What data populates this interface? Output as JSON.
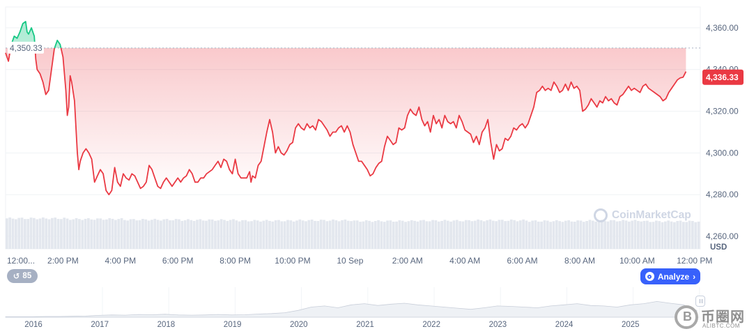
{
  "chart_data": {
    "type": "area",
    "currency_label": "USD",
    "reference_price": 4350.33,
    "reference_label": "4,350.33",
    "current_price": 4336.33,
    "current_label": "4,336.33",
    "ylim": [
      4254,
      4370
    ],
    "y_ticks": [
      4260,
      4280,
      4300,
      4320,
      4340,
      4360
    ],
    "y_tick_labels": [
      "4,260.00",
      "4,280.00",
      "4,300.00",
      "4,320.00",
      "4,340.00",
      "4,360.00"
    ],
    "x_tick_labels": [
      "12:00...",
      "2:00 PM",
      "4:00 PM",
      "6:00 PM",
      "8:00 PM",
      "10:00 PM",
      "10 Sep",
      "2:00 AM",
      "4:00 AM",
      "6:00 AM",
      "8:00 AM",
      "10:00 AM",
      "12:00 PM"
    ],
    "x_tick_hours": [
      0,
      2,
      4,
      6,
      8,
      10,
      12,
      14,
      16,
      18,
      20,
      22,
      24
    ],
    "x_range_hours": [
      0,
      24.2
    ],
    "series": [
      {
        "color_above": "#16c784",
        "color_below": "#ea3943",
        "points": [
          [
            0.0,
            4348
          ],
          [
            0.1,
            4344
          ],
          [
            0.2,
            4352
          ],
          [
            0.3,
            4356
          ],
          [
            0.4,
            4355
          ],
          [
            0.5,
            4358
          ],
          [
            0.6,
            4362
          ],
          [
            0.7,
            4363
          ],
          [
            0.75,
            4358
          ],
          [
            0.8,
            4357
          ],
          [
            0.9,
            4360
          ],
          [
            1.0,
            4356
          ],
          [
            1.05,
            4345
          ],
          [
            1.1,
            4340
          ],
          [
            1.2,
            4338
          ],
          [
            1.3,
            4334
          ],
          [
            1.4,
            4328
          ],
          [
            1.5,
            4330
          ],
          [
            1.6,
            4340
          ],
          [
            1.7,
            4350
          ],
          [
            1.8,
            4354
          ],
          [
            1.9,
            4352
          ],
          [
            2.0,
            4346
          ],
          [
            2.1,
            4330
          ],
          [
            2.15,
            4318
          ],
          [
            2.2,
            4322
          ],
          [
            2.25,
            4337
          ],
          [
            2.3,
            4334
          ],
          [
            2.4,
            4325
          ],
          [
            2.5,
            4300
          ],
          [
            2.55,
            4292
          ],
          [
            2.6,
            4296
          ],
          [
            2.7,
            4300
          ],
          [
            2.8,
            4302
          ],
          [
            2.9,
            4300
          ],
          [
            3.0,
            4297
          ],
          [
            3.1,
            4286
          ],
          [
            3.2,
            4289
          ],
          [
            3.3,
            4292
          ],
          [
            3.4,
            4290
          ],
          [
            3.5,
            4282
          ],
          [
            3.6,
            4280
          ],
          [
            3.7,
            4282
          ],
          [
            3.8,
            4293
          ],
          [
            3.9,
            4286
          ],
          [
            4.0,
            4284
          ],
          [
            4.1,
            4290
          ],
          [
            4.2,
            4288
          ],
          [
            4.3,
            4287
          ],
          [
            4.4,
            4290
          ],
          [
            4.5,
            4289
          ],
          [
            4.6,
            4286
          ],
          [
            4.7,
            4283
          ],
          [
            4.8,
            4284
          ],
          [
            4.9,
            4286
          ],
          [
            5.0,
            4294
          ],
          [
            5.1,
            4292
          ],
          [
            5.2,
            4288
          ],
          [
            5.3,
            4284
          ],
          [
            5.4,
            4283
          ],
          [
            5.5,
            4286
          ],
          [
            5.6,
            4288
          ],
          [
            5.7,
            4286
          ],
          [
            5.8,
            4284
          ],
          [
            5.9,
            4286
          ],
          [
            6.0,
            4288
          ],
          [
            6.1,
            4286
          ],
          [
            6.2,
            4288
          ],
          [
            6.3,
            4289
          ],
          [
            6.4,
            4292
          ],
          [
            6.5,
            4290
          ],
          [
            6.6,
            4286
          ],
          [
            6.7,
            4286
          ],
          [
            6.8,
            4288
          ],
          [
            6.9,
            4288
          ],
          [
            7.0,
            4290
          ],
          [
            7.1,
            4291
          ],
          [
            7.2,
            4292
          ],
          [
            7.3,
            4294
          ],
          [
            7.4,
            4296
          ],
          [
            7.5,
            4293
          ],
          [
            7.6,
            4297
          ],
          [
            7.7,
            4296
          ],
          [
            7.8,
            4292
          ],
          [
            7.9,
            4290
          ],
          [
            8.0,
            4297
          ],
          [
            8.1,
            4290
          ],
          [
            8.2,
            4288
          ],
          [
            8.3,
            4288
          ],
          [
            8.4,
            4288
          ],
          [
            8.5,
            4291
          ],
          [
            8.55,
            4286
          ],
          [
            8.6,
            4289
          ],
          [
            8.7,
            4288
          ],
          [
            8.8,
            4294
          ],
          [
            8.9,
            4296
          ],
          [
            9.0,
            4303
          ],
          [
            9.1,
            4310
          ],
          [
            9.2,
            4316
          ],
          [
            9.3,
            4310
          ],
          [
            9.4,
            4300
          ],
          [
            9.5,
            4303
          ],
          [
            9.6,
            4300
          ],
          [
            9.7,
            4299
          ],
          [
            9.8,
            4301
          ],
          [
            9.9,
            4304
          ],
          [
            10.0,
            4305
          ],
          [
            10.1,
            4312
          ],
          [
            10.2,
            4314
          ],
          [
            10.3,
            4312
          ],
          [
            10.4,
            4311
          ],
          [
            10.5,
            4314
          ],
          [
            10.6,
            4312
          ],
          [
            10.7,
            4313
          ],
          [
            10.8,
            4311
          ],
          [
            10.9,
            4316
          ],
          [
            11.0,
            4315
          ],
          [
            11.1,
            4313
          ],
          [
            11.2,
            4311
          ],
          [
            11.3,
            4308
          ],
          [
            11.4,
            4310
          ],
          [
            11.5,
            4310
          ],
          [
            11.6,
            4312
          ],
          [
            11.7,
            4313
          ],
          [
            11.8,
            4310
          ],
          [
            11.9,
            4313
          ],
          [
            12.0,
            4310
          ],
          [
            12.1,
            4304
          ],
          [
            12.2,
            4300
          ],
          [
            12.3,
            4296
          ],
          [
            12.4,
            4296
          ],
          [
            12.5,
            4294
          ],
          [
            12.6,
            4292
          ],
          [
            12.7,
            4289
          ],
          [
            12.8,
            4290
          ],
          [
            12.9,
            4293
          ],
          [
            13.0,
            4295
          ],
          [
            13.1,
            4296
          ],
          [
            13.2,
            4303
          ],
          [
            13.3,
            4308
          ],
          [
            13.4,
            4306
          ],
          [
            13.5,
            4304
          ],
          [
            13.6,
            4305
          ],
          [
            13.7,
            4312
          ],
          [
            13.8,
            4311
          ],
          [
            13.9,
            4312
          ],
          [
            14.0,
            4318
          ],
          [
            14.1,
            4321
          ],
          [
            14.2,
            4319
          ],
          [
            14.3,
            4318
          ],
          [
            14.4,
            4322
          ],
          [
            14.5,
            4316
          ],
          [
            14.6,
            4313
          ],
          [
            14.7,
            4315
          ],
          [
            14.8,
            4310
          ],
          [
            14.9,
            4318
          ],
          [
            15.0,
            4314
          ],
          [
            15.1,
            4316
          ],
          [
            15.2,
            4312
          ],
          [
            15.3,
            4318
          ],
          [
            15.4,
            4315
          ],
          [
            15.5,
            4314
          ],
          [
            15.6,
            4315
          ],
          [
            15.7,
            4312
          ],
          [
            15.8,
            4318
          ],
          [
            15.9,
            4315
          ],
          [
            16.0,
            4311
          ],
          [
            16.1,
            4310
          ],
          [
            16.2,
            4309
          ],
          [
            16.3,
            4305
          ],
          [
            16.4,
            4308
          ],
          [
            16.5,
            4304
          ],
          [
            16.6,
            4310
          ],
          [
            16.7,
            4312
          ],
          [
            16.8,
            4316
          ],
          [
            16.9,
            4305
          ],
          [
            17.0,
            4297
          ],
          [
            17.1,
            4304
          ],
          [
            17.2,
            4301
          ],
          [
            17.3,
            4302
          ],
          [
            17.4,
            4307
          ],
          [
            17.5,
            4306
          ],
          [
            17.6,
            4308
          ],
          [
            17.7,
            4312
          ],
          [
            17.8,
            4311
          ],
          [
            17.9,
            4313
          ],
          [
            18.0,
            4314
          ],
          [
            18.1,
            4312
          ],
          [
            18.2,
            4314
          ],
          [
            18.3,
            4318
          ],
          [
            18.4,
            4322
          ],
          [
            18.5,
            4329
          ],
          [
            18.6,
            4330
          ],
          [
            18.7,
            4332
          ],
          [
            18.8,
            4330
          ],
          [
            18.9,
            4331
          ],
          [
            19.0,
            4330
          ],
          [
            19.1,
            4334
          ],
          [
            19.2,
            4332
          ],
          [
            19.3,
            4329
          ],
          [
            19.4,
            4330
          ],
          [
            19.5,
            4333
          ],
          [
            19.6,
            4330
          ],
          [
            19.7,
            4334
          ],
          [
            19.8,
            4331
          ],
          [
            19.9,
            4332
          ],
          [
            20.0,
            4330
          ],
          [
            20.1,
            4320
          ],
          [
            20.2,
            4321
          ],
          [
            20.3,
            4323
          ],
          [
            20.4,
            4326
          ],
          [
            20.5,
            4324
          ],
          [
            20.6,
            4322
          ],
          [
            20.7,
            4325
          ],
          [
            20.8,
            4324
          ],
          [
            20.9,
            4327
          ],
          [
            21.0,
            4325
          ],
          [
            21.1,
            4326
          ],
          [
            21.2,
            4324
          ],
          [
            21.3,
            4323
          ],
          [
            21.4,
            4327
          ],
          [
            21.5,
            4328
          ],
          [
            21.6,
            4330
          ],
          [
            21.7,
            4332
          ],
          [
            21.8,
            4330
          ],
          [
            21.9,
            4331
          ],
          [
            22.0,
            4330
          ],
          [
            22.1,
            4329
          ],
          [
            22.2,
            4332
          ],
          [
            22.3,
            4333
          ],
          [
            22.4,
            4331
          ],
          [
            22.5,
            4330
          ],
          [
            22.6,
            4329
          ],
          [
            22.7,
            4328
          ],
          [
            22.8,
            4327
          ],
          [
            22.9,
            4325
          ],
          [
            23.0,
            4326
          ],
          [
            23.1,
            4329
          ],
          [
            23.2,
            4331
          ],
          [
            23.3,
            4333
          ],
          [
            23.4,
            4335
          ],
          [
            23.5,
            4336
          ],
          [
            23.6,
            4336.33
          ],
          [
            23.7,
            4339
          ]
        ]
      }
    ],
    "volume": {
      "relative_heights": [
        0.92,
        0.9,
        0.88,
        0.87,
        0.85,
        0.86,
        0.84,
        0.85,
        0.86,
        0.84,
        0.85,
        0.83
      ]
    },
    "overview_x_labels": [
      "2016",
      "2017",
      "2018",
      "2019",
      "2020",
      "2021",
      "2022",
      "2023",
      "2024",
      "2025"
    ],
    "overview_series": [
      0.02,
      0.02,
      0.02,
      0.03,
      0.03,
      0.04,
      0.05,
      0.08,
      0.1,
      0.09,
      0.12,
      0.11,
      0.13,
      0.1,
      0.09,
      0.1,
      0.12,
      0.1,
      0.11,
      0.14,
      0.16,
      0.2,
      0.3,
      0.45,
      0.5,
      0.42,
      0.55,
      0.6,
      0.52,
      0.58,
      0.62,
      0.55,
      0.5,
      0.45,
      0.4,
      0.35,
      0.42,
      0.5,
      0.48,
      0.45,
      0.42,
      0.5,
      0.55,
      0.6,
      0.52,
      0.5,
      0.45,
      0.55,
      0.6,
      0.7,
      0.62,
      0.55,
      0.3
    ]
  },
  "controls": {
    "history_count": "85",
    "analyze_label": "Analyze"
  },
  "watermark_text": "CoinMarketCap",
  "site_badge": {
    "text": "币圈网",
    "url": "ALIBTC.COM"
  }
}
